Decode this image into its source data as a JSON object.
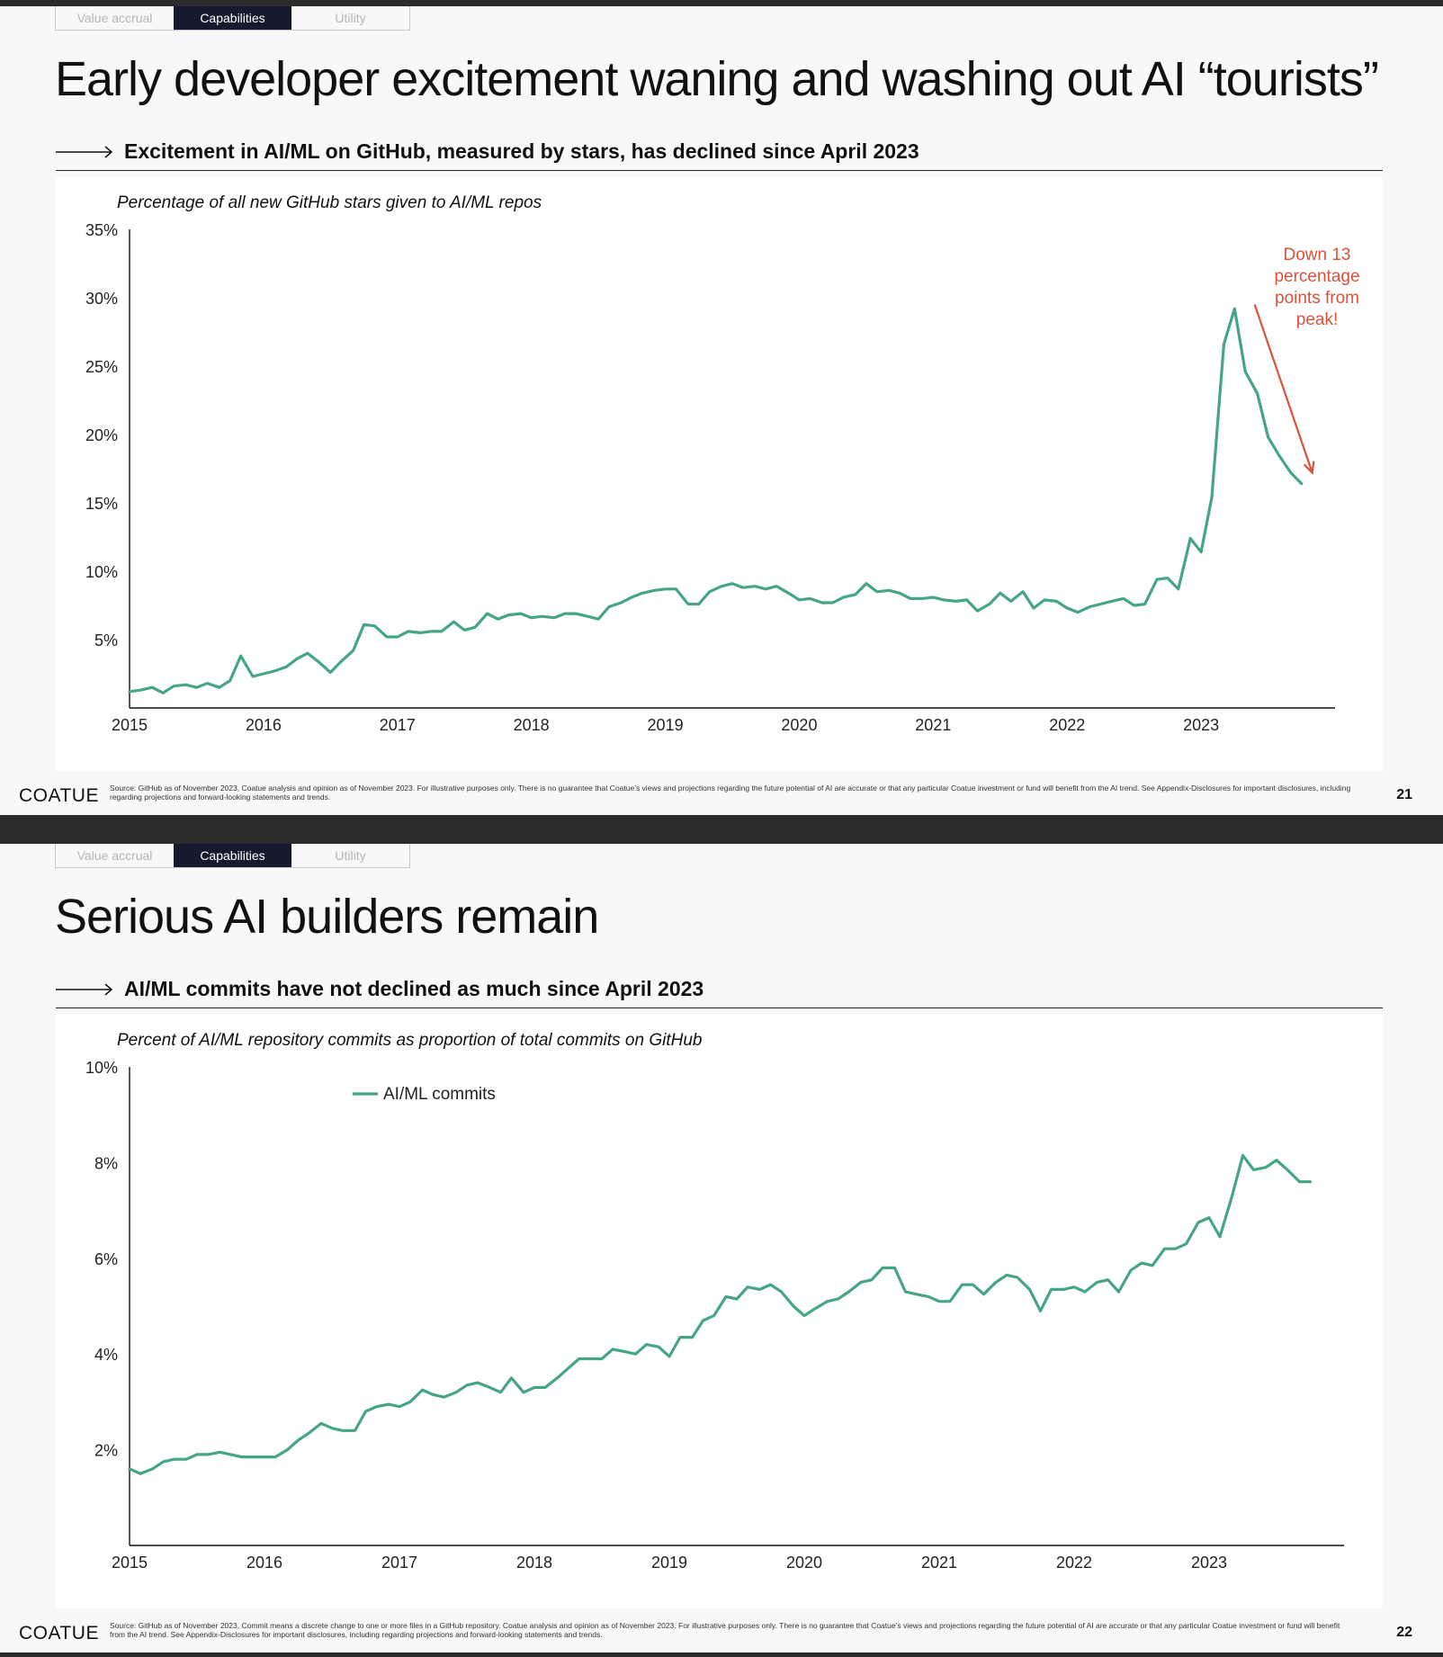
{
  "colors": {
    "line": "#46a585",
    "annotation": "#d9533a",
    "tab_active_bg": "#161a2e"
  },
  "slides": [
    {
      "tabs": [
        "Value accrual",
        "Capabilities",
        "Utility"
      ],
      "active_tab": 1,
      "title": "Early developer excitement waning and washing out AI “tourists”",
      "subheading": "Excitement in AI/ML on GitHub, measured by stars, has declined since April 2023",
      "footer": {
        "logo": "COATUE",
        "source": "Source: GitHub as of November 2023, Coatue analysis and opinion as of November 2023. For illustrative purposes only. There is no guarantee that Coatue’s views and projections regarding the future potential of AI are accurate or that any particular Coatue investment or fund will benefit from the AI trend. See Appendix-Disclosures for important disclosures, including regarding projections and forward-looking statements and trends.",
        "page": "21"
      }
    },
    {
      "tabs": [
        "Value accrual",
        "Capabilities",
        "Utility"
      ],
      "active_tab": 1,
      "title": "Serious AI builders remain",
      "subheading": "AI/ML commits have not declined as much since April 2023",
      "footer": {
        "logo": "COATUE",
        "source": "Source: GitHub as of November 2023, Commit means a discrete change to one or more files in a GitHub repository. Coatue analysis and opinion as of November 2023. For illustrative purposes only. There is no guarantee that Coatue’s views and projections regarding the future potential of AI are accurate or that any particular Coatue investment or fund will benefit from the AI trend. See Appendix-Disclosures for important disclosures, including regarding projections and forward-looking statements and trends.",
        "page": "22"
      }
    }
  ],
  "chart_data": [
    {
      "type": "line",
      "title": "Percentage of all new GitHub stars given to AI/ML repos",
      "xlim": [
        2015.0,
        2024.0
      ],
      "ylim": [
        0,
        35
      ],
      "x_ticks": [
        2015,
        2016,
        2017,
        2018,
        2019,
        2020,
        2021,
        2022,
        2023
      ],
      "y_ticks": [
        5,
        10,
        15,
        20,
        25,
        30,
        35
      ],
      "y_tick_labels": [
        "5%",
        "10%",
        "15%",
        "20%",
        "25%",
        "30%",
        "35%"
      ],
      "grid": false,
      "legend": null,
      "annotation": {
        "text": [
          "Down 13",
          "percentage",
          "points from",
          "peak!"
        ],
        "from": [
          2023.4,
          29.5
        ],
        "to": [
          2023.83,
          17.2
        ]
      },
      "series": [
        {
          "x": [
            2015.0,
            2015.08,
            2015.17,
            2015.25,
            2015.33,
            2015.42,
            2015.5,
            2015.58,
            2015.67,
            2015.75,
            2015.83,
            2015.92,
            2016.0,
            2016.08,
            2016.17,
            2016.25,
            2016.33,
            2016.42,
            2016.5,
            2016.58,
            2016.67,
            2016.75,
            2016.83,
            2016.92,
            2017.0,
            2017.08,
            2017.17,
            2017.25,
            2017.33,
            2017.42,
            2017.5,
            2017.58,
            2017.67,
            2017.75,
            2017.83,
            2017.92,
            2018.0,
            2018.08,
            2018.17,
            2018.25,
            2018.33,
            2018.42,
            2018.5,
            2018.58,
            2018.67,
            2018.75,
            2018.83,
            2018.92,
            2019.0,
            2019.08,
            2019.17,
            2019.25,
            2019.33,
            2019.42,
            2019.5,
            2019.58,
            2019.67,
            2019.75,
            2019.83,
            2019.92,
            2020.0,
            2020.08,
            2020.17,
            2020.25,
            2020.33,
            2020.42,
            2020.5,
            2020.58,
            2020.67,
            2020.75,
            2020.83,
            2020.92,
            2021.0,
            2021.08,
            2021.17,
            2021.25,
            2021.33,
            2021.42,
            2021.5,
            2021.58,
            2021.67,
            2021.75,
            2021.83,
            2021.92,
            2022.0,
            2022.08,
            2022.17,
            2022.25,
            2022.33,
            2022.42,
            2022.5,
            2022.58,
            2022.67,
            2022.75,
            2022.83,
            2022.92,
            2023.0,
            2023.08,
            2023.17,
            2023.25,
            2023.33,
            2023.42,
            2023.5,
            2023.58,
            2023.67,
            2023.75
          ],
          "y": [
            1.2,
            1.3,
            1.5,
            1.1,
            1.6,
            1.7,
            1.5,
            1.8,
            1.5,
            2.0,
            3.8,
            2.3,
            2.5,
            2.7,
            3.0,
            3.6,
            4.0,
            3.3,
            2.6,
            3.4,
            4.2,
            6.1,
            6.0,
            5.2,
            5.2,
            5.6,
            5.5,
            5.6,
            5.6,
            6.3,
            5.7,
            5.9,
            6.9,
            6.5,
            6.8,
            6.9,
            6.6,
            6.7,
            6.6,
            6.9,
            6.9,
            6.7,
            6.5,
            7.4,
            7.7,
            8.1,
            8.4,
            8.6,
            8.7,
            8.7,
            7.6,
            7.6,
            8.5,
            8.9,
            9.1,
            8.8,
            8.9,
            8.7,
            8.9,
            8.4,
            7.9,
            8.0,
            7.7,
            7.7,
            8.1,
            8.3,
            9.1,
            8.5,
            8.6,
            8.4,
            8.0,
            8.0,
            8.1,
            7.9,
            7.8,
            7.9,
            7.1,
            7.6,
            8.4,
            7.8,
            8.5,
            7.3,
            7.9,
            7.8,
            7.3,
            7.0,
            7.4,
            7.6,
            7.8,
            8.0,
            7.5,
            7.6,
            9.4,
            9.5,
            8.7,
            12.4,
            11.4,
            15.4,
            26.6,
            29.2,
            24.6,
            23.0,
            19.8,
            18.5,
            17.2,
            16.4
          ]
        }
      ]
    },
    {
      "type": "line",
      "title": "Percent of AI/ML repository commits as proportion of total commits on GitHub",
      "xlim": [
        2015.0,
        2024.0
      ],
      "ylim": [
        0,
        10
      ],
      "x_ticks": [
        2015,
        2016,
        2017,
        2018,
        2019,
        2020,
        2021,
        2022,
        2023
      ],
      "y_ticks": [
        2,
        4,
        6,
        8,
        10
      ],
      "y_tick_labels": [
        "2%",
        "4%",
        "6%",
        "8%",
        "10%"
      ],
      "grid": false,
      "legend": "top-left",
      "series": [
        {
          "name": "AI/ML commits",
          "x": [
            2015.0,
            2015.08,
            2015.17,
            2015.25,
            2015.33,
            2015.42,
            2015.5,
            2015.58,
            2015.67,
            2015.75,
            2015.83,
            2015.92,
            2016.0,
            2016.08,
            2016.17,
            2016.25,
            2016.33,
            2016.42,
            2016.5,
            2016.58,
            2016.67,
            2016.75,
            2016.83,
            2016.92,
            2017.0,
            2017.08,
            2017.17,
            2017.25,
            2017.33,
            2017.42,
            2017.5,
            2017.58,
            2017.67,
            2017.75,
            2017.83,
            2017.92,
            2018.0,
            2018.08,
            2018.17,
            2018.25,
            2018.33,
            2018.42,
            2018.5,
            2018.58,
            2018.67,
            2018.75,
            2018.83,
            2018.92,
            2019.0,
            2019.08,
            2019.17,
            2019.25,
            2019.33,
            2019.42,
            2019.5,
            2019.58,
            2019.67,
            2019.75,
            2019.83,
            2019.92,
            2020.0,
            2020.08,
            2020.17,
            2020.25,
            2020.33,
            2020.42,
            2020.5,
            2020.58,
            2020.67,
            2020.75,
            2020.83,
            2020.92,
            2021.0,
            2021.08,
            2021.17,
            2021.25,
            2021.33,
            2021.42,
            2021.5,
            2021.58,
            2021.67,
            2021.75,
            2021.83,
            2021.92,
            2022.0,
            2022.08,
            2022.17,
            2022.25,
            2022.33,
            2022.42,
            2022.5,
            2022.58,
            2022.67,
            2022.75,
            2022.83,
            2022.92,
            2023.0,
            2023.08,
            2023.17,
            2023.25,
            2023.33,
            2023.42,
            2023.5,
            2023.58,
            2023.67,
            2023.75
          ],
          "y": [
            1.6,
            1.5,
            1.6,
            1.75,
            1.8,
            1.8,
            1.9,
            1.9,
            1.95,
            1.9,
            1.85,
            1.85,
            1.85,
            1.85,
            2.0,
            2.2,
            2.35,
            2.55,
            2.45,
            2.4,
            2.4,
            2.8,
            2.9,
            2.95,
            2.9,
            3.0,
            3.25,
            3.15,
            3.1,
            3.2,
            3.35,
            3.4,
            3.3,
            3.2,
            3.5,
            3.2,
            3.3,
            3.3,
            3.5,
            3.7,
            3.9,
            3.9,
            3.9,
            4.1,
            4.05,
            4.0,
            4.2,
            4.15,
            3.95,
            4.35,
            4.35,
            4.7,
            4.8,
            5.2,
            5.15,
            5.4,
            5.35,
            5.45,
            5.3,
            5.0,
            4.8,
            4.95,
            5.1,
            5.15,
            5.3,
            5.5,
            5.55,
            5.8,
            5.8,
            5.3,
            5.25,
            5.2,
            5.1,
            5.1,
            5.45,
            5.45,
            5.25,
            5.5,
            5.65,
            5.6,
            5.35,
            4.9,
            5.35,
            5.35,
            5.4,
            5.3,
            5.5,
            5.55,
            5.3,
            5.75,
            5.9,
            5.85,
            6.2,
            6.2,
            6.3,
            6.75,
            6.85,
            6.45,
            7.3,
            8.15,
            7.85,
            7.9,
            8.05,
            7.85,
            7.6,
            7.6
          ]
        }
      ]
    }
  ]
}
